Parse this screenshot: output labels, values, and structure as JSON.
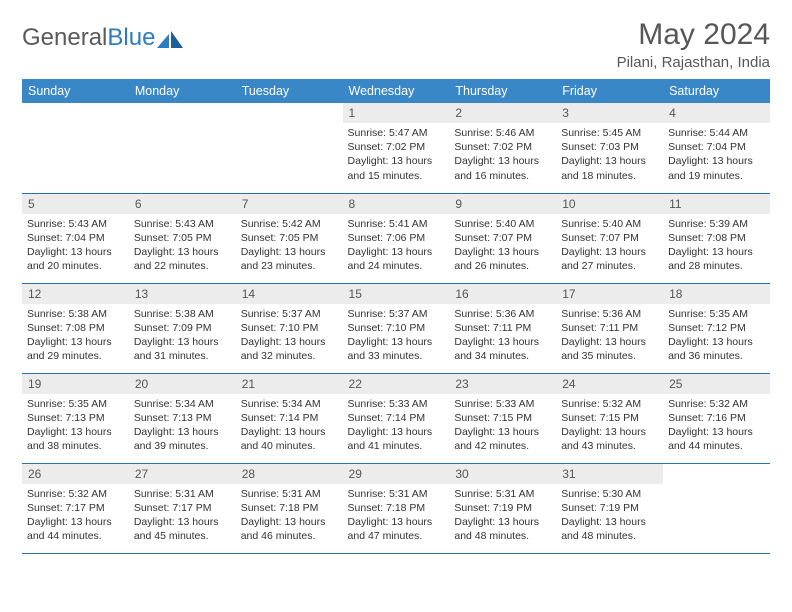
{
  "logo": {
    "text1": "General",
    "text2": "Blue"
  },
  "title": "May 2024",
  "location": "Pilani, Rajasthan, India",
  "header_bg": "#3a87c7",
  "header_fg": "#ffffff",
  "daynum_bg": "#ececec",
  "rule_color": "#2d6fa8",
  "weekdays": [
    "Sunday",
    "Monday",
    "Tuesday",
    "Wednesday",
    "Thursday",
    "Friday",
    "Saturday"
  ],
  "weeks": [
    [
      {
        "n": "",
        "sr": "",
        "ss": "",
        "dl": ""
      },
      {
        "n": "",
        "sr": "",
        "ss": "",
        "dl": ""
      },
      {
        "n": "",
        "sr": "",
        "ss": "",
        "dl": ""
      },
      {
        "n": "1",
        "sr": "5:47 AM",
        "ss": "7:02 PM",
        "dl": "13 hours and 15 minutes."
      },
      {
        "n": "2",
        "sr": "5:46 AM",
        "ss": "7:02 PM",
        "dl": "13 hours and 16 minutes."
      },
      {
        "n": "3",
        "sr": "5:45 AM",
        "ss": "7:03 PM",
        "dl": "13 hours and 18 minutes."
      },
      {
        "n": "4",
        "sr": "5:44 AM",
        "ss": "7:04 PM",
        "dl": "13 hours and 19 minutes."
      }
    ],
    [
      {
        "n": "5",
        "sr": "5:43 AM",
        "ss": "7:04 PM",
        "dl": "13 hours and 20 minutes."
      },
      {
        "n": "6",
        "sr": "5:43 AM",
        "ss": "7:05 PM",
        "dl": "13 hours and 22 minutes."
      },
      {
        "n": "7",
        "sr": "5:42 AM",
        "ss": "7:05 PM",
        "dl": "13 hours and 23 minutes."
      },
      {
        "n": "8",
        "sr": "5:41 AM",
        "ss": "7:06 PM",
        "dl": "13 hours and 24 minutes."
      },
      {
        "n": "9",
        "sr": "5:40 AM",
        "ss": "7:07 PM",
        "dl": "13 hours and 26 minutes."
      },
      {
        "n": "10",
        "sr": "5:40 AM",
        "ss": "7:07 PM",
        "dl": "13 hours and 27 minutes."
      },
      {
        "n": "11",
        "sr": "5:39 AM",
        "ss": "7:08 PM",
        "dl": "13 hours and 28 minutes."
      }
    ],
    [
      {
        "n": "12",
        "sr": "5:38 AM",
        "ss": "7:08 PM",
        "dl": "13 hours and 29 minutes."
      },
      {
        "n": "13",
        "sr": "5:38 AM",
        "ss": "7:09 PM",
        "dl": "13 hours and 31 minutes."
      },
      {
        "n": "14",
        "sr": "5:37 AM",
        "ss": "7:10 PM",
        "dl": "13 hours and 32 minutes."
      },
      {
        "n": "15",
        "sr": "5:37 AM",
        "ss": "7:10 PM",
        "dl": "13 hours and 33 minutes."
      },
      {
        "n": "16",
        "sr": "5:36 AM",
        "ss": "7:11 PM",
        "dl": "13 hours and 34 minutes."
      },
      {
        "n": "17",
        "sr": "5:36 AM",
        "ss": "7:11 PM",
        "dl": "13 hours and 35 minutes."
      },
      {
        "n": "18",
        "sr": "5:35 AM",
        "ss": "7:12 PM",
        "dl": "13 hours and 36 minutes."
      }
    ],
    [
      {
        "n": "19",
        "sr": "5:35 AM",
        "ss": "7:13 PM",
        "dl": "13 hours and 38 minutes."
      },
      {
        "n": "20",
        "sr": "5:34 AM",
        "ss": "7:13 PM",
        "dl": "13 hours and 39 minutes."
      },
      {
        "n": "21",
        "sr": "5:34 AM",
        "ss": "7:14 PM",
        "dl": "13 hours and 40 minutes."
      },
      {
        "n": "22",
        "sr": "5:33 AM",
        "ss": "7:14 PM",
        "dl": "13 hours and 41 minutes."
      },
      {
        "n": "23",
        "sr": "5:33 AM",
        "ss": "7:15 PM",
        "dl": "13 hours and 42 minutes."
      },
      {
        "n": "24",
        "sr": "5:32 AM",
        "ss": "7:15 PM",
        "dl": "13 hours and 43 minutes."
      },
      {
        "n": "25",
        "sr": "5:32 AM",
        "ss": "7:16 PM",
        "dl": "13 hours and 44 minutes."
      }
    ],
    [
      {
        "n": "26",
        "sr": "5:32 AM",
        "ss": "7:17 PM",
        "dl": "13 hours and 44 minutes."
      },
      {
        "n": "27",
        "sr": "5:31 AM",
        "ss": "7:17 PM",
        "dl": "13 hours and 45 minutes."
      },
      {
        "n": "28",
        "sr": "5:31 AM",
        "ss": "7:18 PM",
        "dl": "13 hours and 46 minutes."
      },
      {
        "n": "29",
        "sr": "5:31 AM",
        "ss": "7:18 PM",
        "dl": "13 hours and 47 minutes."
      },
      {
        "n": "30",
        "sr": "5:31 AM",
        "ss": "7:19 PM",
        "dl": "13 hours and 48 minutes."
      },
      {
        "n": "31",
        "sr": "5:30 AM",
        "ss": "7:19 PM",
        "dl": "13 hours and 48 minutes."
      },
      {
        "n": "",
        "sr": "",
        "ss": "",
        "dl": ""
      }
    ]
  ]
}
